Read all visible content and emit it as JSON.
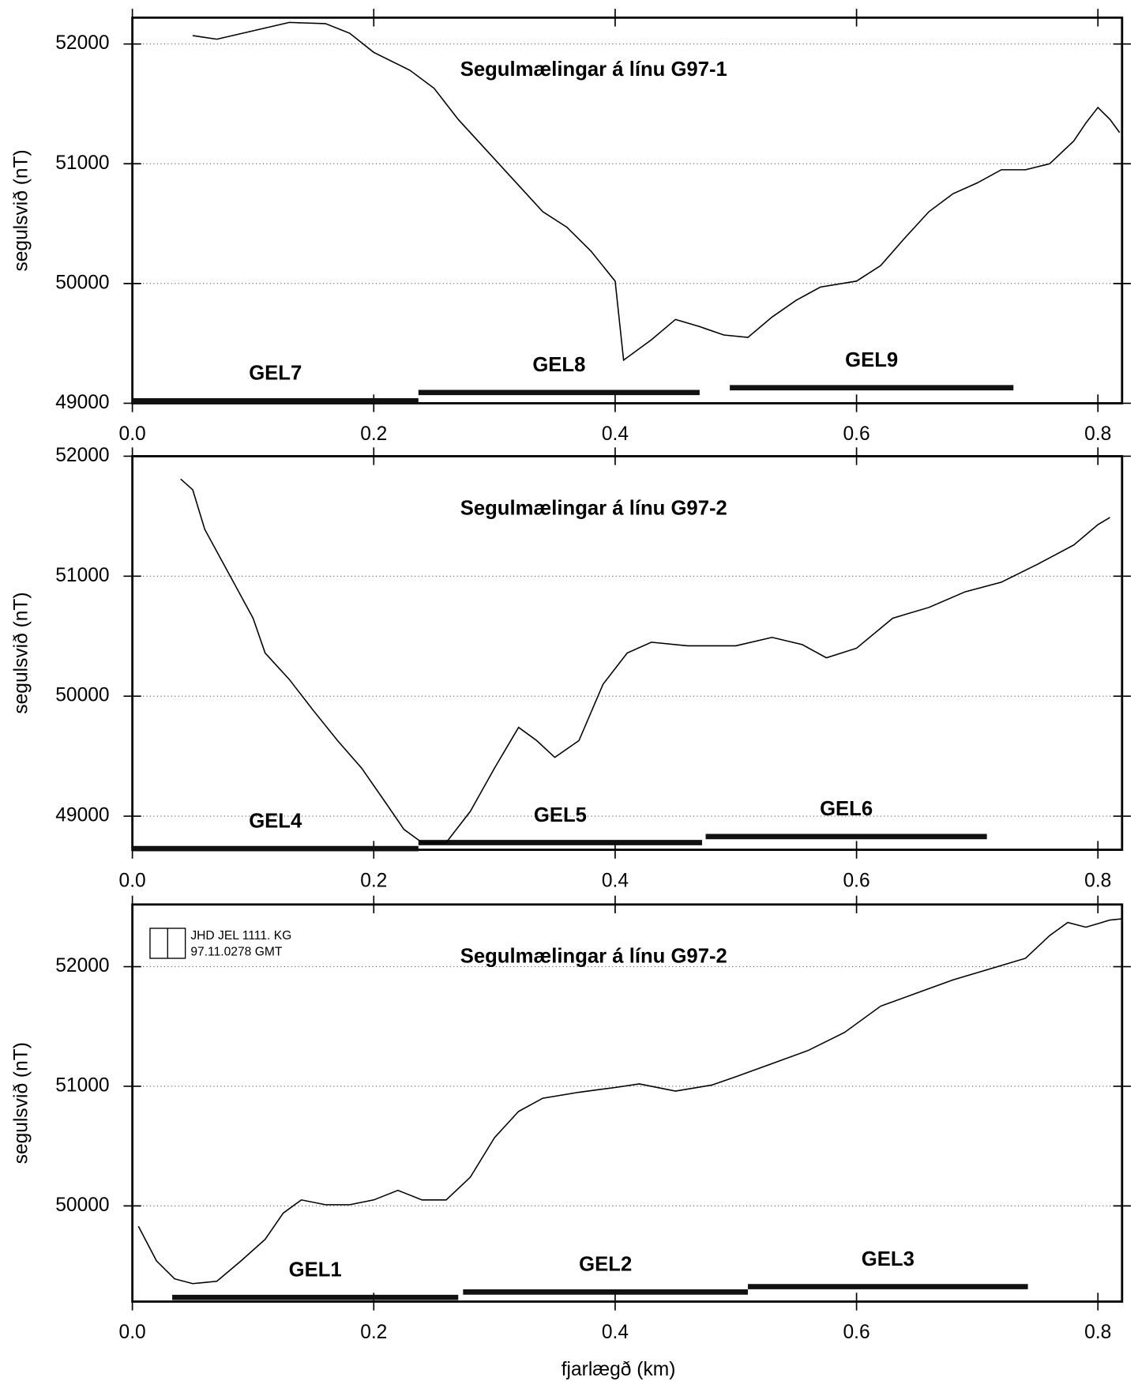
{
  "chart_data": [
    {
      "type": "line",
      "title": "Segulmælingar á línu G97-1",
      "ylabel": "segulsvið (nT)",
      "xlim": [
        0,
        0.82
      ],
      "ylim": [
        49000,
        52220
      ],
      "xticks": [
        {
          "value": 0,
          "label": "0.0"
        },
        0.2,
        0.4,
        0.6,
        0.8
      ],
      "yticks": [
        49000,
        50000,
        51000,
        52000
      ],
      "grid": true,
      "x": [
        0.05,
        0.07,
        0.1,
        0.13,
        0.16,
        0.18,
        0.2,
        0.23,
        0.25,
        0.27,
        0.3,
        0.32,
        0.34,
        0.36,
        0.38,
        0.4,
        0.407,
        0.43,
        0.45,
        0.47,
        0.49,
        0.51,
        0.53,
        0.55,
        0.57,
        0.6,
        0.62,
        0.64,
        0.66,
        0.68,
        0.7,
        0.72,
        0.74,
        0.76,
        0.78,
        0.79,
        0.8,
        0.81,
        0.818
      ],
      "series": [
        {
          "color": "#000000",
          "values": [
            52070,
            52040,
            52110,
            52180,
            52170,
            52090,
            51930,
            51780,
            51630,
            51370,
            51040,
            50820,
            50600,
            50470,
            50270,
            50020,
            49360,
            49530,
            49700,
            49640,
            49570,
            49550,
            49720,
            49860,
            49970,
            50020,
            50150,
            50380,
            50600,
            50750,
            50840,
            50950,
            50950,
            51000,
            51190,
            51340,
            51470,
            51370,
            51260
          ]
        }
      ],
      "segments": [
        {
          "label": "GEL7",
          "x": [
            0,
            0.237
          ],
          "y": 49020
        },
        {
          "label": "GEL8",
          "x": [
            0.237,
            0.47
          ],
          "y": 49090
        },
        {
          "label": "GEL9",
          "x": [
            0.495,
            0.73
          ],
          "y": 49130
        }
      ]
    },
    {
      "type": "line",
      "title": "Segulmælingar á línu G97-2",
      "ylabel": "segulsvið (nT)",
      "xlim": [
        0,
        0.82
      ],
      "ylim": [
        48720,
        52000
      ],
      "xticks": [
        {
          "value": 0,
          "label": "0.0"
        },
        0.2,
        0.4,
        0.6,
        0.8
      ],
      "yticks": [
        49000,
        50000,
        51000,
        52000
      ],
      "grid": true,
      "x": [
        0.04,
        0.05,
        0.06,
        0.08,
        0.1,
        0.11,
        0.13,
        0.15,
        0.17,
        0.19,
        0.21,
        0.225,
        0.24,
        0.26,
        0.28,
        0.3,
        0.32,
        0.335,
        0.35,
        0.37,
        0.39,
        0.41,
        0.43,
        0.46,
        0.5,
        0.53,
        0.555,
        0.575,
        0.6,
        0.63,
        0.66,
        0.69,
        0.72,
        0.75,
        0.78,
        0.8,
        0.81
      ],
      "series": [
        {
          "color": "#000000",
          "values": [
            51810,
            51720,
            51390,
            51020,
            50650,
            50360,
            50140,
            49880,
            49630,
            49400,
            49110,
            48890,
            48780,
            48780,
            49040,
            49400,
            49740,
            49630,
            49490,
            49630,
            50100,
            50360,
            50450,
            50420,
            50420,
            50490,
            50430,
            50320,
            50400,
            50650,
            50740,
            50870,
            50950,
            51100,
            51260,
            51430,
            51490
          ]
        }
      ],
      "segments": [
        {
          "label": "GEL4",
          "x": [
            0,
            0.237
          ],
          "y": 48730
        },
        {
          "label": "GEL5",
          "x": [
            0.237,
            0.472
          ],
          "y": 48780
        },
        {
          "label": "GEL6",
          "x": [
            0.475,
            0.708
          ],
          "y": 48830
        }
      ]
    },
    {
      "type": "line",
      "title": "Segulmælingar á línu G97-2",
      "ylabel": "segulsvið (nT)",
      "xlabel": "fjarlægð (km)",
      "stamp": [
        "JHD JEL 1111. KG",
        "97.11.0278 GMT"
      ],
      "xlim": [
        0,
        0.82
      ],
      "ylim": [
        49200,
        52520
      ],
      "xticks": [
        {
          "value": 0,
          "label": "0.0"
        },
        0.2,
        0.4,
        0.6,
        0.8
      ],
      "yticks": [
        50000,
        51000,
        52000
      ],
      "grid": true,
      "x": [
        0.005,
        0.02,
        0.035,
        0.05,
        0.07,
        0.09,
        0.11,
        0.125,
        0.14,
        0.16,
        0.18,
        0.2,
        0.22,
        0.24,
        0.26,
        0.28,
        0.3,
        0.32,
        0.34,
        0.37,
        0.4,
        0.42,
        0.45,
        0.48,
        0.5,
        0.53,
        0.56,
        0.59,
        0.62,
        0.65,
        0.68,
        0.71,
        0.74,
        0.76,
        0.775,
        0.79,
        0.81,
        0.82
      ],
      "series": [
        {
          "color": "#000000",
          "values": [
            49830,
            49540,
            49390,
            49350,
            49370,
            49540,
            49720,
            49940,
            50050,
            50010,
            50010,
            50050,
            50130,
            50050,
            50050,
            50240,
            50570,
            50790,
            50900,
            50950,
            50990,
            51020,
            50960,
            51010,
            51080,
            51190,
            51300,
            51450,
            51670,
            51780,
            51890,
            51980,
            52070,
            52260,
            52370,
            52330,
            52390,
            52400
          ]
        }
      ],
      "segments": [
        {
          "label": "GEL1",
          "x": [
            0.033,
            0.27
          ],
          "y": 49235
        },
        {
          "label": "GEL2",
          "x": [
            0.274,
            0.51
          ],
          "y": 49280
        },
        {
          "label": "GEL3",
          "x": [
            0.51,
            0.742
          ],
          "y": 49325
        }
      ]
    }
  ]
}
